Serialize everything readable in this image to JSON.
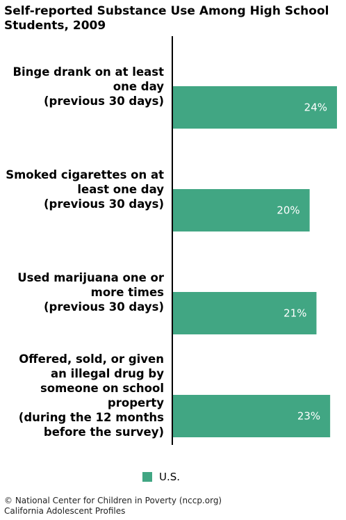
{
  "title": "Self-reported Substance Use Among High School\nStudents, 2009",
  "colors": {
    "bar": "#41a683",
    "axis": "#000000"
  },
  "legend": {
    "label": "U.S."
  },
  "footer": "© National Center for Children in Poverty (nccp.org)\nCalifornia Adolescent Profiles",
  "chart_data": {
    "type": "bar",
    "orientation": "horizontal",
    "categories": [
      [
        "Binge drank on at least",
        "one day",
        "(previous 30 days)"
      ],
      [
        "Smoked cigarettes on at",
        "least one day",
        "(previous 30 days)"
      ],
      [
        "Used marijuana one or",
        "more times",
        "(previous 30 days)"
      ],
      [
        "Offered, sold, or given",
        "an illegal drug by",
        "someone on school",
        "property",
        "(during the 12 months",
        "before the survey)"
      ]
    ],
    "series": [
      {
        "name": "U.S.",
        "values": [
          24,
          20,
          21,
          23
        ],
        "labels": [
          "24%",
          "20%",
          "21%",
          "23%"
        ]
      }
    ],
    "xlim": [
      0,
      24
    ],
    "grid": false,
    "legend_position": "bottom"
  }
}
